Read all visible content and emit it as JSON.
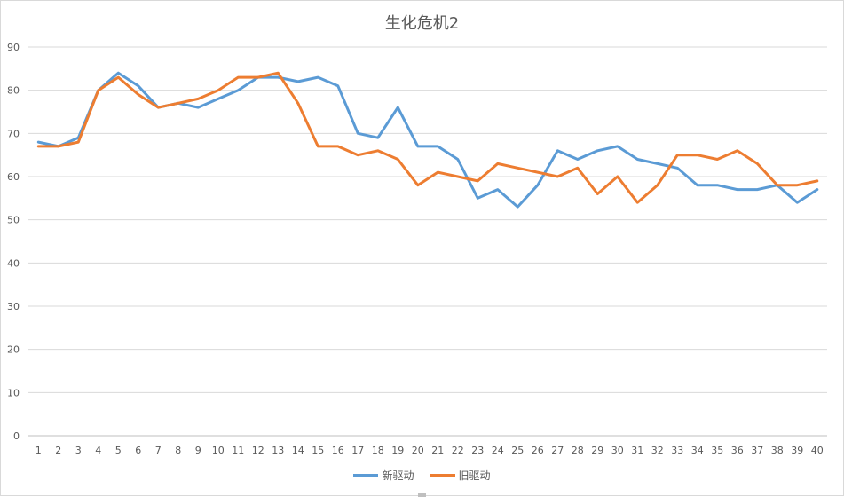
{
  "chart_data": {
    "type": "line",
    "title": "生化危机2",
    "x": [
      1,
      2,
      3,
      4,
      5,
      6,
      7,
      8,
      9,
      10,
      11,
      12,
      13,
      14,
      15,
      16,
      17,
      18,
      19,
      20,
      21,
      22,
      23,
      24,
      25,
      26,
      27,
      28,
      29,
      30,
      31,
      32,
      33,
      34,
      35,
      36,
      37,
      38,
      39,
      40
    ],
    "series": [
      {
        "name": "新驱动",
        "color": "#5b9bd5",
        "values": [
          68,
          67,
          69,
          80,
          84,
          81,
          76,
          77,
          76,
          78,
          80,
          83,
          83,
          82,
          83,
          81,
          70,
          69,
          76,
          67,
          67,
          64,
          55,
          57,
          53,
          58,
          66,
          64,
          66,
          67,
          64,
          63,
          62,
          58,
          58,
          57,
          57,
          58,
          54,
          57
        ]
      },
      {
        "name": "旧驱动",
        "color": "#ed7d31",
        "values": [
          67,
          67,
          68,
          80,
          83,
          79,
          76,
          77,
          78,
          80,
          83,
          83,
          84,
          77,
          67,
          67,
          65,
          66,
          64,
          58,
          61,
          60,
          59,
          63,
          62,
          61,
          60,
          62,
          56,
          60,
          54,
          58,
          65,
          65,
          64,
          66,
          63,
          58,
          58,
          59
        ]
      }
    ],
    "ylim": [
      0,
      90
    ],
    "yticks": [
      0,
      10,
      20,
      30,
      40,
      50,
      60,
      70,
      80,
      90
    ],
    "grid": true,
    "legend": "bottom"
  }
}
